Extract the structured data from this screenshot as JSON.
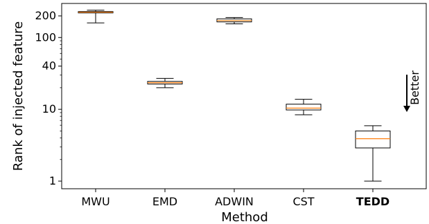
{
  "chart_data": {
    "type": "box",
    "xlabel": "Method",
    "ylabel": "Rank of injected feature",
    "yscale": "log",
    "ylim": [
      0.8,
      300
    ],
    "yticks": [
      {
        "value": 1,
        "label": "1"
      },
      {
        "value": 10,
        "label": "10"
      },
      {
        "value": 40,
        "label": "40"
      },
      {
        "value": 100,
        "label": "100"
      },
      {
        "value": 200,
        "label": "200"
      }
    ],
    "categories": [
      {
        "label": "MWU",
        "bold": false,
        "whisker_low": 160,
        "q1": 220,
        "median": 225,
        "q3": 230,
        "whisker_high": 240
      },
      {
        "label": "EMD",
        "bold": false,
        "whisker_low": 20,
        "q1": 22.5,
        "median": 23.5,
        "q3": 24.5,
        "whisker_high": 27
      },
      {
        "label": "ADWIN",
        "bold": false,
        "whisker_low": 155,
        "q1": 165,
        "median": 172,
        "q3": 182,
        "whisker_high": 190
      },
      {
        "label": "CST",
        "bold": false,
        "whisker_low": 8.4,
        "q1": 9.8,
        "median": 10.4,
        "q3": 11.8,
        "whisker_high": 13.8
      },
      {
        "label": "TEDD",
        "bold": true,
        "whisker_low": 1,
        "q1": 2.9,
        "median": 3.9,
        "q3": 5,
        "whisker_high": 5.9
      }
    ],
    "annotation": {
      "text": "Better",
      "direction": "down"
    },
    "box_color": "#000000",
    "median_color": "#ff7f0e",
    "grid": false,
    "legend": "none"
  }
}
